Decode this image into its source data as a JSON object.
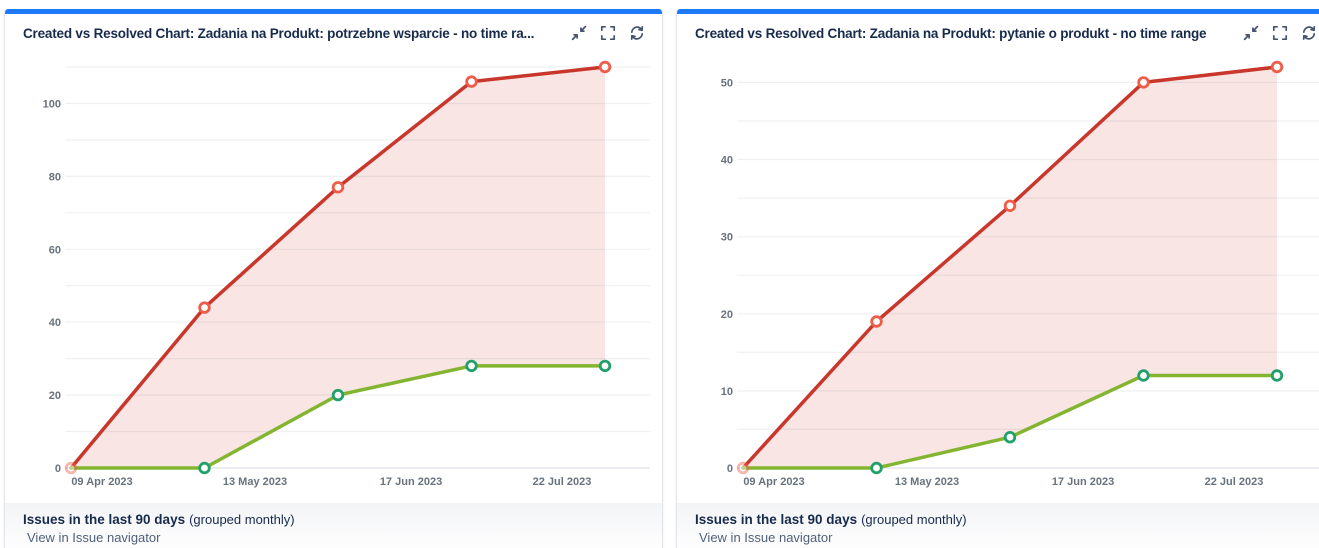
{
  "colors": {
    "accent_bar": "#1d7afc",
    "title_text": "#172b4d",
    "tick_text": "#68727d",
    "grid_line": "#eef0f2",
    "axis_line": "#dfe1e6",
    "icon": "#44546f",
    "link_text": "#505f79",
    "created_line": "#c9372c",
    "created_marker": "#ef5c48",
    "resolved_line": "#84b530",
    "resolved_marker": "#22a06b",
    "area_fill": "rgba(201,55,44,0.13)"
  },
  "panels": [
    {
      "title": "Created vs Resolved Chart: Zadania na Produkt: potrzebne wsparcie - no time ra...",
      "footer_title": "Issues in the last 90 days",
      "footer_note": "(grouped monthly)",
      "footer_link": "View in Issue navigator",
      "chart_data": {
        "type": "line",
        "x_tick_labels": [
          "09 Apr 2023",
          "13 May 2023",
          "17 Jun 2023",
          "22 Jul 2023"
        ],
        "series": [
          {
            "name": "created",
            "values": [
              0,
              44,
              77,
              106,
              110
            ]
          },
          {
            "name": "resolved",
            "values": [
              0,
              0,
              20,
              28,
              28
            ]
          }
        ],
        "ylim": [
          0,
          110
        ],
        "grid_step": 10,
        "ylabel_step": 20,
        "grid": true,
        "legend": false
      }
    },
    {
      "title": "Created vs Resolved Chart: Zadania na Produkt: pytanie o produkt - no time range",
      "footer_title": "Issues in the last 90 days",
      "footer_note": "(grouped monthly)",
      "footer_link": "View in Issue navigator",
      "chart_data": {
        "type": "line",
        "x_tick_labels": [
          "09 Apr 2023",
          "13 May 2023",
          "17 Jun 2023",
          "22 Jul 2023"
        ],
        "series": [
          {
            "name": "created",
            "values": [
              0,
              19,
              34,
              50,
              52
            ]
          },
          {
            "name": "resolved",
            "values": [
              0,
              0,
              4,
              12,
              12
            ]
          }
        ],
        "ylim": [
          0,
          52
        ],
        "grid_step": 5,
        "ylabel_step": 10,
        "grid": true,
        "legend": false
      }
    }
  ]
}
